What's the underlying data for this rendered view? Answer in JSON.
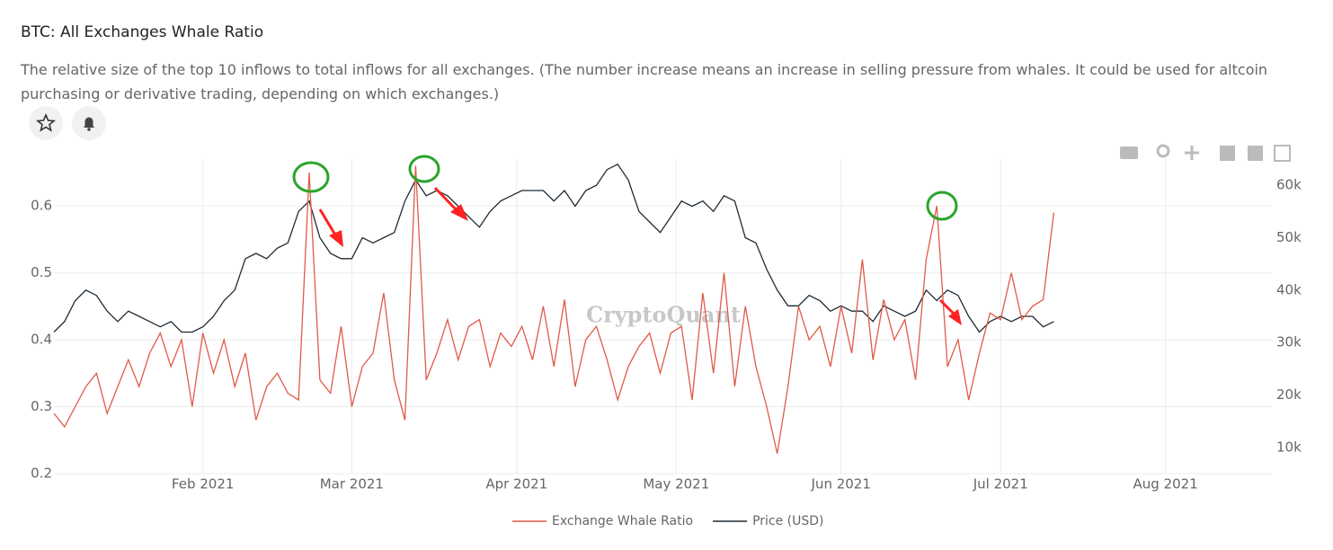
{
  "chart_data": {
    "type": "line",
    "title": "BTC: All Exchanges Whale Ratio",
    "subtitle": "The relative size of the top 10 inflows to total inflows for all exchanges. (The number increase means an increase in selling pressure from whales. It could be used for altcoin purchasing or derivative trading, depending on which exchanges.)",
    "watermark": "CryptoQuant",
    "x": [
      3,
      5,
      7,
      9,
      11,
      13,
      15,
      17,
      19,
      21,
      23,
      25,
      27,
      29,
      31,
      33,
      35,
      37,
      39,
      41,
      43,
      45,
      47,
      49,
      51,
      53,
      55,
      57,
      59,
      61,
      63,
      65,
      67,
      69,
      71,
      73,
      75,
      77,
      79,
      81,
      83,
      85,
      87,
      89,
      91,
      93,
      95,
      97,
      99,
      101,
      103,
      105,
      107,
      109,
      111,
      113,
      115,
      117,
      119,
      121,
      123,
      125,
      127,
      129,
      131,
      133,
      135,
      137,
      139,
      141,
      143,
      145,
      147,
      149,
      151,
      153,
      155,
      157,
      159,
      161,
      163,
      165,
      167,
      169,
      171,
      173,
      175,
      177,
      179,
      181,
      183,
      185,
      187,
      189,
      191
    ],
    "xlim": [
      3,
      232
    ],
    "xticks": [
      {
        "value": 31,
        "label": "Feb 2021"
      },
      {
        "value": 59,
        "label": "Mar 2021"
      },
      {
        "value": 90,
        "label": "Apr 2021"
      },
      {
        "value": 120,
        "label": "May 2021"
      },
      {
        "value": 151,
        "label": "Jun 2021"
      },
      {
        "value": 181,
        "label": "Jul 2021"
      },
      {
        "value": 212,
        "label": "Aug 2021"
      }
    ],
    "ylim": [
      0.2,
      0.67
    ],
    "yticks": [
      0.2,
      0.3,
      0.4,
      0.5,
      0.6
    ],
    "y2lim": [
      5000,
      65000
    ],
    "y2ticks": [
      {
        "value": 10000,
        "label": "10k"
      },
      {
        "value": 20000,
        "label": "20k"
      },
      {
        "value": 30000,
        "label": "30k"
      },
      {
        "value": 40000,
        "label": "40k"
      },
      {
        "value": 50000,
        "label": "50k"
      },
      {
        "value": 60000,
        "label": "60k"
      }
    ],
    "grid": true,
    "series": [
      {
        "name": "Exchange Whale Ratio",
        "color": "#e05a47",
        "values": [
          0.29,
          0.27,
          0.3,
          0.33,
          0.35,
          0.29,
          0.33,
          0.37,
          0.33,
          0.38,
          0.41,
          0.36,
          0.4,
          0.3,
          0.41,
          0.35,
          0.4,
          0.33,
          0.38,
          0.28,
          0.33,
          0.35,
          0.32,
          0.31,
          0.65,
          0.34,
          0.32,
          0.42,
          0.3,
          0.36,
          0.38,
          0.47,
          0.34,
          0.28,
          0.66,
          0.34,
          0.38,
          0.43,
          0.37,
          0.42,
          0.43,
          0.36,
          0.41,
          0.39,
          0.42,
          0.37,
          0.45,
          0.36,
          0.46,
          0.33,
          0.4,
          0.42,
          0.37,
          0.31,
          0.36,
          0.39,
          0.41,
          0.35,
          0.41,
          0.42,
          0.31,
          0.47,
          0.35,
          0.5,
          0.33,
          0.45,
          0.36,
          0.3,
          0.23,
          0.33,
          0.45,
          0.4,
          0.42,
          0.36,
          0.45,
          0.38,
          0.52,
          0.37,
          0.46,
          0.4,
          0.43,
          0.34,
          0.52,
          0.6,
          0.36,
          0.4,
          0.31,
          0.38,
          0.44,
          0.43,
          0.5,
          0.43,
          0.45,
          0.46,
          0.59
        ]
      },
      {
        "name": "Price (USD)",
        "color": "#1f2a33",
        "axis": "y2",
        "values": [
          32000,
          34000,
          38000,
          40000,
          39000,
          36000,
          34000,
          36000,
          35000,
          34000,
          33000,
          34000,
          32000,
          32000,
          33000,
          35000,
          38000,
          40000,
          46000,
          47000,
          46000,
          48000,
          49000,
          55000,
          57000,
          50000,
          47000,
          46000,
          46000,
          50000,
          49000,
          50000,
          51000,
          57000,
          61000,
          58000,
          59000,
          58000,
          56000,
          54000,
          52000,
          55000,
          57000,
          58000,
          59000,
          59000,
          59000,
          57000,
          59000,
          56000,
          59000,
          60000,
          63000,
          64000,
          61000,
          55000,
          53000,
          51000,
          54000,
          57000,
          56000,
          57000,
          55000,
          58000,
          57000,
          50000,
          49000,
          44000,
          40000,
          37000,
          37000,
          39000,
          38000,
          36000,
          37000,
          36000,
          36000,
          34000,
          37000,
          36000,
          35000,
          36000,
          40000,
          38000,
          40000,
          39000,
          35000,
          32000,
          34000,
          35000,
          34000,
          35000,
          35000,
          33000,
          34000
        ]
      }
    ]
  }
}
